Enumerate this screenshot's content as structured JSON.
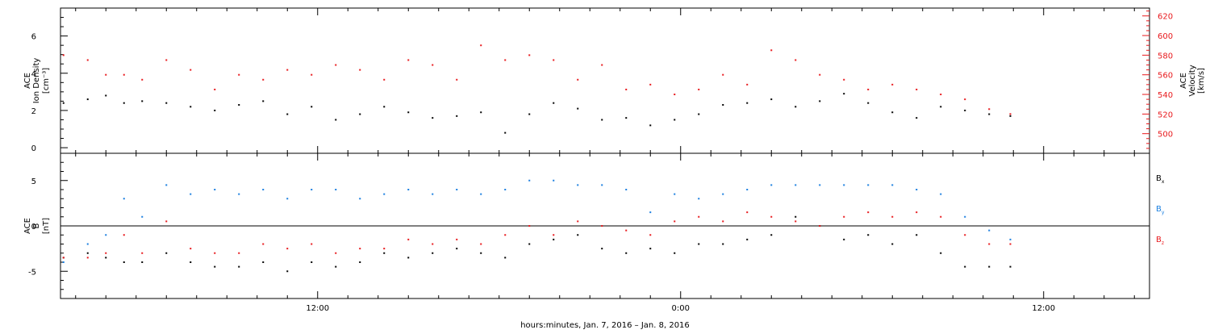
{
  "xlabel": "hours:minutes, Jan.  7, 2016 – Jan.  8, 2016",
  "colors": {
    "black": "#000000",
    "red": "#e8191d",
    "blue": "#1a7fe0"
  },
  "chart_data": [
    {
      "type": "scatter",
      "panel": "top",
      "x_ticklabels": [
        "12:00",
        "0:00",
        "12:00"
      ],
      "x_ticks_hours": [
        12,
        24,
        36
      ],
      "xlim_hours": [
        3.5,
        39.5
      ],
      "left_axis": {
        "label_lines": [
          "ACE",
          "Ion Density",
          "[cm⁻³]"
        ],
        "ylim": [
          -0.3,
          7.5
        ],
        "ticks": [
          0,
          2,
          4,
          6
        ]
      },
      "right_axis": {
        "label_lines": [
          "ACE",
          "Velocity",
          "[km/s]"
        ],
        "ylim": [
          480,
          628
        ],
        "ticks": [
          500,
          520,
          540,
          560,
          580,
          600,
          620
        ],
        "color": "#e8191d"
      },
      "series": [
        {
          "axis": "left",
          "color": "#000000",
          "points": [
            [
              3.6,
              2.4
            ],
            [
              4.4,
              2.6
            ],
            [
              5.0,
              2.8
            ],
            [
              5.6,
              2.4
            ],
            [
              6.2,
              2.5
            ],
            [
              7.0,
              2.4
            ],
            [
              7.8,
              2.2
            ],
            [
              8.6,
              2.0
            ],
            [
              9.4,
              2.3
            ],
            [
              10.2,
              2.5
            ],
            [
              11.0,
              1.8
            ],
            [
              11.8,
              2.2
            ],
            [
              12.6,
              1.5
            ],
            [
              13.4,
              1.8
            ],
            [
              14.2,
              2.2
            ],
            [
              15.0,
              1.9
            ],
            [
              15.8,
              1.6
            ],
            [
              16.6,
              1.7
            ],
            [
              17.4,
              1.9
            ],
            [
              18.2,
              0.8
            ],
            [
              19.0,
              1.8
            ],
            [
              19.8,
              2.4
            ],
            [
              20.6,
              2.1
            ],
            [
              21.4,
              1.5
            ],
            [
              22.2,
              1.6
            ],
            [
              23.0,
              1.2
            ],
            [
              23.8,
              1.5
            ],
            [
              24.6,
              1.8
            ],
            [
              25.4,
              2.3
            ],
            [
              26.2,
              2.4
            ],
            [
              27.0,
              2.6
            ],
            [
              27.8,
              2.2
            ],
            [
              28.6,
              2.5
            ],
            [
              29.4,
              2.9
            ],
            [
              30.2,
              2.4
            ],
            [
              31.0,
              1.9
            ],
            [
              31.8,
              1.6
            ],
            [
              32.6,
              2.2
            ],
            [
              33.4,
              2.0
            ],
            [
              34.2,
              1.8
            ],
            [
              34.9,
              1.7
            ]
          ]
        },
        {
          "axis": "right",
          "color": "#e8191d",
          "points": [
            [
              3.6,
              580
            ],
            [
              4.4,
              575
            ],
            [
              5.0,
              560
            ],
            [
              5.6,
              560
            ],
            [
              6.2,
              555
            ],
            [
              7.0,
              575
            ],
            [
              7.8,
              565
            ],
            [
              8.6,
              545
            ],
            [
              9.4,
              560
            ],
            [
              10.2,
              555
            ],
            [
              11.0,
              565
            ],
            [
              11.8,
              560
            ],
            [
              12.6,
              570
            ],
            [
              13.4,
              565
            ],
            [
              14.2,
              555
            ],
            [
              15.0,
              575
            ],
            [
              15.8,
              570
            ],
            [
              16.6,
              555
            ],
            [
              17.4,
              590
            ],
            [
              18.2,
              575
            ],
            [
              19.0,
              580
            ],
            [
              19.8,
              575
            ],
            [
              20.6,
              555
            ],
            [
              21.4,
              570
            ],
            [
              22.2,
              545
            ],
            [
              23.0,
              550
            ],
            [
              23.8,
              540
            ],
            [
              24.6,
              545
            ],
            [
              25.4,
              560
            ],
            [
              26.2,
              550
            ],
            [
              27.0,
              585
            ],
            [
              27.8,
              575
            ],
            [
              28.6,
              560
            ],
            [
              29.4,
              555
            ],
            [
              30.2,
              545
            ],
            [
              31.0,
              550
            ],
            [
              31.8,
              545
            ],
            [
              32.6,
              540
            ],
            [
              33.4,
              535
            ],
            [
              34.2,
              525
            ],
            [
              34.9,
              520
            ]
          ]
        }
      ]
    },
    {
      "type": "scatter",
      "panel": "bottom",
      "x_ticklabels": [
        "12:00",
        "0:00",
        "12:00"
      ],
      "left_axis": {
        "label_lines": [
          "ACE",
          "B",
          "[nT]"
        ],
        "ylim": [
          -8,
          8
        ],
        "ticks": [
          -5,
          0,
          5
        ]
      },
      "zero_line": true,
      "legend_placement": "right",
      "series": [
        {
          "name": "Bx",
          "color": "#000000",
          "points": [
            [
              3.6,
              -3.5
            ],
            [
              4.4,
              -3.0
            ],
            [
              5.0,
              -3.5
            ],
            [
              5.6,
              -4.0
            ],
            [
              6.2,
              -4.0
            ],
            [
              7.0,
              -3.0
            ],
            [
              7.8,
              -4.0
            ],
            [
              8.6,
              -4.5
            ],
            [
              9.4,
              -4.5
            ],
            [
              10.2,
              -4.0
            ],
            [
              11.0,
              -5.0
            ],
            [
              11.8,
              -4.0
            ],
            [
              12.6,
              -4.5
            ],
            [
              13.4,
              -4.0
            ],
            [
              14.2,
              -3.0
            ],
            [
              15.0,
              -3.5
            ],
            [
              15.8,
              -3.0
            ],
            [
              16.6,
              -2.5
            ],
            [
              17.4,
              -3.0
            ],
            [
              18.2,
              -3.5
            ],
            [
              19.0,
              -2.0
            ],
            [
              19.8,
              -1.5
            ],
            [
              20.6,
              -1.0
            ],
            [
              21.4,
              -2.5
            ],
            [
              22.2,
              -3.0
            ],
            [
              23.0,
              -2.5
            ],
            [
              23.8,
              -3.0
            ],
            [
              24.6,
              -2.0
            ],
            [
              25.4,
              -2.0
            ],
            [
              26.2,
              -1.5
            ],
            [
              27.0,
              -1.0
            ],
            [
              27.8,
              1.0
            ],
            [
              28.6,
              0.0
            ],
            [
              29.4,
              -1.5
            ],
            [
              30.2,
              -1.0
            ],
            [
              31.0,
              -2.0
            ],
            [
              31.8,
              -1.0
            ],
            [
              32.6,
              -3.0
            ],
            [
              33.4,
              -4.5
            ],
            [
              34.2,
              -4.5
            ],
            [
              34.9,
              -4.5
            ]
          ]
        },
        {
          "name": "By",
          "color": "#1a7fe0",
          "points": [
            [
              3.6,
              -4.0
            ],
            [
              4.4,
              -2.0
            ],
            [
              5.0,
              -1.0
            ],
            [
              5.6,
              3.0
            ],
            [
              6.2,
              1.0
            ],
            [
              7.0,
              4.5
            ],
            [
              7.8,
              3.5
            ],
            [
              8.6,
              4.0
            ],
            [
              9.4,
              3.5
            ],
            [
              10.2,
              4.0
            ],
            [
              11.0,
              3.0
            ],
            [
              11.8,
              4.0
            ],
            [
              12.6,
              4.0
            ],
            [
              13.4,
              3.0
            ],
            [
              14.2,
              3.5
            ],
            [
              15.0,
              4.0
            ],
            [
              15.8,
              3.5
            ],
            [
              16.6,
              4.0
            ],
            [
              17.4,
              3.5
            ],
            [
              18.2,
              4.0
            ],
            [
              19.0,
              5.0
            ],
            [
              19.8,
              5.0
            ],
            [
              20.6,
              4.5
            ],
            [
              21.4,
              4.5
            ],
            [
              22.2,
              4.0
            ],
            [
              23.0,
              1.5
            ],
            [
              23.8,
              3.5
            ],
            [
              24.6,
              3.0
            ],
            [
              25.4,
              3.5
            ],
            [
              26.2,
              4.0
            ],
            [
              27.0,
              4.5
            ],
            [
              27.8,
              4.5
            ],
            [
              28.6,
              4.5
            ],
            [
              29.4,
              4.5
            ],
            [
              30.2,
              4.5
            ],
            [
              31.0,
              4.5
            ],
            [
              31.8,
              4.0
            ],
            [
              32.6,
              3.5
            ],
            [
              33.4,
              1.0
            ],
            [
              34.2,
              -0.5
            ],
            [
              34.9,
              -1.5
            ]
          ]
        },
        {
          "name": "Bz",
          "color": "#e8191d",
          "points": [
            [
              3.6,
              -3.5
            ],
            [
              4.4,
              -3.5
            ],
            [
              5.0,
              -3.0
            ],
            [
              5.6,
              -1.0
            ],
            [
              6.2,
              -3.0
            ],
            [
              7.0,
              0.5
            ],
            [
              7.8,
              -2.5
            ],
            [
              8.6,
              -3.0
            ],
            [
              9.4,
              -3.0
            ],
            [
              10.2,
              -2.0
            ],
            [
              11.0,
              -2.5
            ],
            [
              11.8,
              -2.0
            ],
            [
              12.6,
              -3.0
            ],
            [
              13.4,
              -2.5
            ],
            [
              14.2,
              -2.5
            ],
            [
              15.0,
              -1.5
            ],
            [
              15.8,
              -2.0
            ],
            [
              16.6,
              -1.5
            ],
            [
              17.4,
              -2.0
            ],
            [
              18.2,
              -1.0
            ],
            [
              19.0,
              0.0
            ],
            [
              19.8,
              -1.0
            ],
            [
              20.6,
              0.5
            ],
            [
              21.4,
              0.0
            ],
            [
              22.2,
              -0.5
            ],
            [
              23.0,
              -1.0
            ],
            [
              23.8,
              0.5
            ],
            [
              24.6,
              1.0
            ],
            [
              25.4,
              0.5
            ],
            [
              26.2,
              1.5
            ],
            [
              27.0,
              1.0
            ],
            [
              27.8,
              0.5
            ],
            [
              28.6,
              0.0
            ],
            [
              29.4,
              1.0
            ],
            [
              30.2,
              1.5
            ],
            [
              31.0,
              1.0
            ],
            [
              31.8,
              1.5
            ],
            [
              32.6,
              1.0
            ],
            [
              33.4,
              -1.0
            ],
            [
              34.2,
              -2.0
            ],
            [
              34.9,
              -2.0
            ]
          ]
        }
      ]
    }
  ]
}
